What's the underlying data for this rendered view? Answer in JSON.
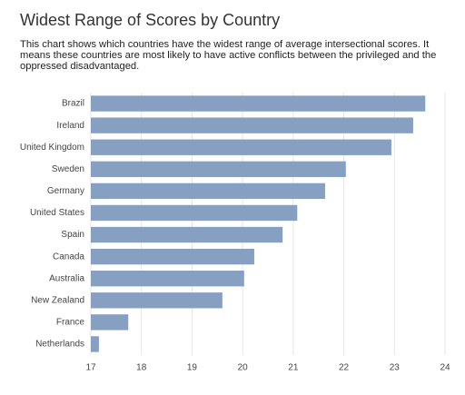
{
  "chart_data": {
    "type": "bar",
    "orientation": "horizontal",
    "title": "Widest Range of Scores by Country",
    "subtitle": "This chart shows which countries have the widest range of average intersectional scores. It means these countries are most likely to have active conflicts between the privileged and the oppressed disadvantaged.",
    "categories": [
      "Brazil",
      "Ireland",
      "United Kingdom",
      "Sweden",
      "Germany",
      "United States",
      "Spain",
      "Canada",
      "Australia",
      "New Zealand",
      "France",
      "Netherlands"
    ],
    "values": [
      23.61,
      23.37,
      22.94,
      22.04,
      21.63,
      21.08,
      20.79,
      20.23,
      20.03,
      19.6,
      17.74,
      17.16
    ],
    "color": "#879fc0",
    "xlim": [
      17,
      24
    ],
    "xticks": [
      17,
      18,
      19,
      20,
      21,
      22,
      23,
      24
    ],
    "grid": true
  }
}
